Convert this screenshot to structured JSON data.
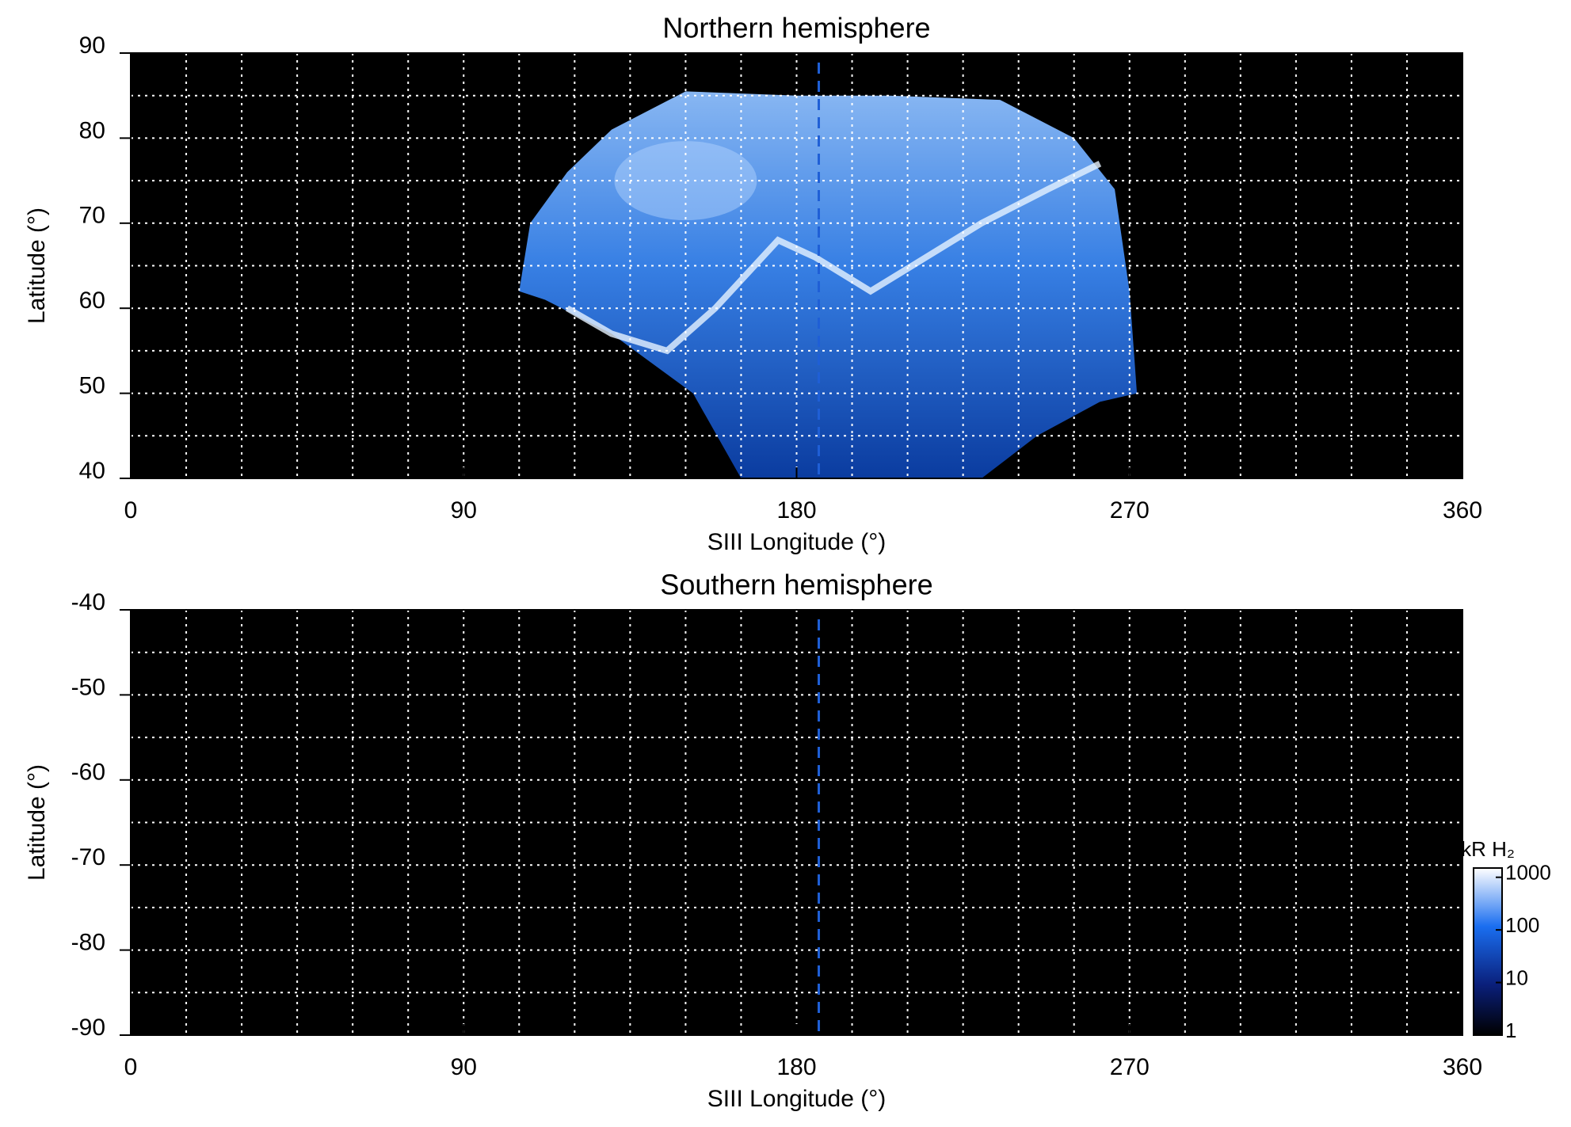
{
  "chart_data": [
    {
      "type": "map",
      "title": "Northern hemisphere",
      "xlabel": "SIII Longitude (°)",
      "ylabel": "Latitude (°)",
      "xlim": [
        0,
        360
      ],
      "xticks": [
        0,
        90,
        180,
        270,
        360
      ],
      "ylim": [
        40,
        90
      ],
      "yticks": [
        40,
        50,
        60,
        70,
        80,
        90
      ],
      "xgrid": [
        15,
        30,
        45,
        60,
        75,
        90,
        105,
        120,
        135,
        150,
        165,
        180,
        195,
        210,
        225,
        240,
        255,
        270,
        285,
        300,
        315,
        330,
        345
      ],
      "ygrid": [
        45,
        50,
        55,
        60,
        65,
        70,
        75,
        80,
        85
      ],
      "reference_x": 186,
      "reference_color": "#1f5fd6",
      "background": "#000000"
    },
    {
      "type": "map",
      "title": "Southern hemisphere",
      "xlabel": "SIII Longitude (°)",
      "ylabel": "Latitude (°)",
      "xlim": [
        0,
        360
      ],
      "xticks": [
        0,
        90,
        180,
        270,
        360
      ],
      "ylim": [
        -90,
        -40
      ],
      "yticks": [
        -90,
        -80,
        -70,
        -60,
        -50,
        -40
      ],
      "xgrid": [
        15,
        30,
        45,
        60,
        75,
        90,
        105,
        120,
        135,
        150,
        165,
        180,
        195,
        210,
        225,
        240,
        255,
        270,
        285,
        300,
        315,
        330,
        345
      ],
      "ygrid": [
        -85,
        -80,
        -75,
        -70,
        -65,
        -60,
        -55,
        -50,
        -45
      ],
      "reference_x": 186,
      "reference_color": "#1f5fd6",
      "background": "#000000",
      "colorbar": {
        "label": "kR H₂",
        "lim": [
          1,
          1500
        ],
        "ticks": [
          1,
          10,
          100,
          1000
        ],
        "log": true
      }
    }
  ]
}
